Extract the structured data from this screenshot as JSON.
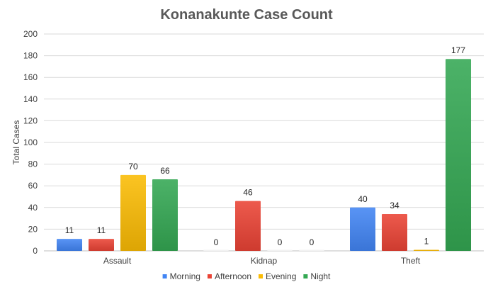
{
  "chart_data": {
    "type": "bar",
    "title": "Konanakunte Case Count",
    "xlabel": "",
    "ylabel": "Total Cases",
    "ylim": [
      0,
      200
    ],
    "yticks": [
      0,
      20,
      40,
      60,
      80,
      100,
      120,
      140,
      160,
      180,
      200
    ],
    "grid": true,
    "legend_position": "bottom",
    "categories": [
      "Assault",
      "Kidnap",
      "Theft"
    ],
    "series": [
      {
        "name": "Morning",
        "color": "#4285F4",
        "values": [
          11,
          0,
          40
        ]
      },
      {
        "name": "Afternoon",
        "color": "#EA4335",
        "values": [
          11,
          46,
          34
        ]
      },
      {
        "name": "Evening",
        "color": "#FBBC04",
        "values": [
          70,
          0,
          1
        ]
      },
      {
        "name": "Night",
        "color": "#34A853",
        "values": [
          66,
          0,
          177
        ]
      }
    ]
  }
}
